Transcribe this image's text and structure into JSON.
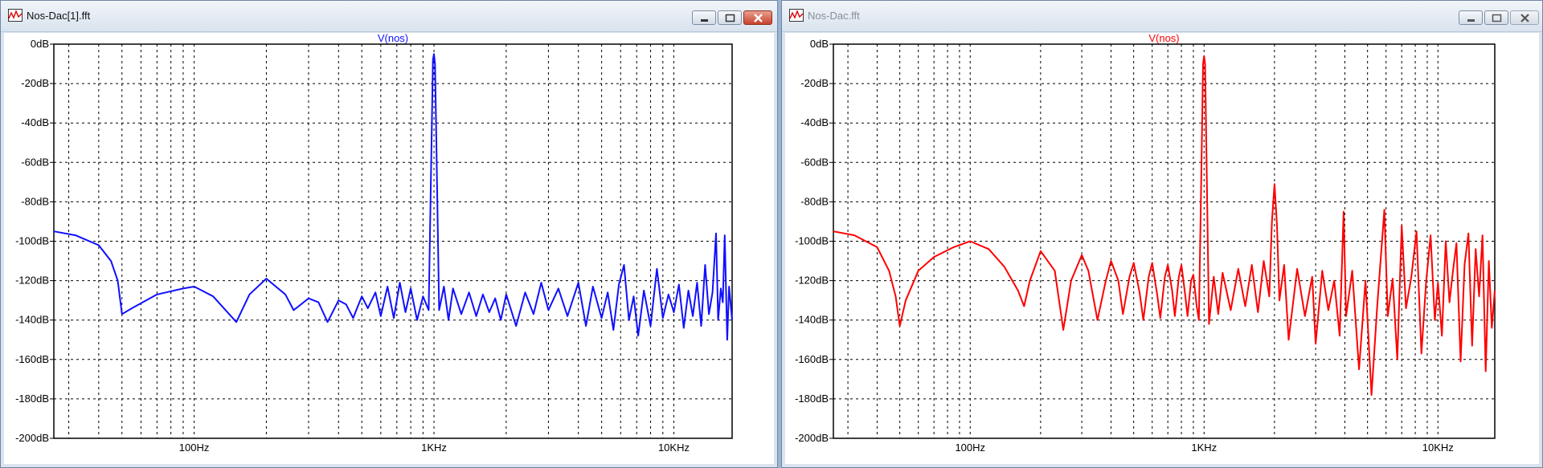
{
  "windows": [
    {
      "id": "win1",
      "title": "Nos-Dac[1].fft",
      "active": true,
      "trace_label": "V(nos)",
      "trace_color": "#1010ff"
    },
    {
      "id": "win2",
      "title": "Nos-Dac.fft",
      "active": false,
      "trace_label": "V(nos)",
      "trace_color": "#ff0000"
    }
  ],
  "icons": {
    "app": "waveform-icon",
    "minimize": "minimize-icon",
    "maximize": "maximize-icon",
    "close": "close-icon"
  },
  "colors": {
    "grid": "#000000",
    "plot_background": "#ffffff",
    "close_active": "#c9412b"
  },
  "chart_data": [
    {
      "type": "line",
      "title": "V(nos)",
      "x_scale": "log",
      "xlim": [
        26,
        17500
      ],
      "ylim": [
        -200,
        0
      ],
      "grid": true,
      "y_ticks": [
        "0dB",
        "-20dB",
        "-40dB",
        "-60dB",
        "-80dB",
        "-100dB",
        "-120dB",
        "-140dB",
        "-160dB",
        "-180dB",
        "-200dB"
      ],
      "x_ticks": [
        {
          "value": 100,
          "label": "100Hz"
        },
        {
          "value": 1000,
          "label": "1KHz"
        },
        {
          "value": 10000,
          "label": "10KHz"
        }
      ],
      "series": [
        {
          "color": "#1010ff",
          "points": [
            [
              26,
              -95
            ],
            [
              32,
              -97
            ],
            [
              40,
              -102
            ],
            [
              45,
              -110
            ],
            [
              48,
              -120
            ],
            [
              50,
              -137
            ],
            [
              55,
              -134
            ],
            [
              70,
              -127
            ],
            [
              90,
              -124
            ],
            [
              100,
              -123
            ],
            [
              120,
              -128
            ],
            [
              150,
              -141
            ],
            [
              170,
              -127
            ],
            [
              200,
              -119
            ],
            [
              240,
              -127
            ],
            [
              260,
              -135
            ],
            [
              300,
              -129
            ],
            [
              330,
              -131
            ],
            [
              360,
              -141
            ],
            [
              400,
              -130
            ],
            [
              430,
              -132
            ],
            [
              460,
              -139
            ],
            [
              500,
              -128
            ],
            [
              530,
              -134
            ],
            [
              570,
              -126
            ],
            [
              600,
              -138
            ],
            [
              640,
              -123
            ],
            [
              680,
              -139
            ],
            [
              720,
              -121
            ],
            [
              760,
              -136
            ],
            [
              800,
              -124
            ],
            [
              850,
              -140
            ],
            [
              900,
              -128
            ],
            [
              950,
              -135
            ],
            [
              980,
              -40
            ],
            [
              990,
              -8
            ],
            [
              1000,
              -5
            ],
            [
              1010,
              -10
            ],
            [
              1020,
              -40
            ],
            [
              1050,
              -135
            ],
            [
              1100,
              -123
            ],
            [
              1150,
              -140
            ],
            [
              1200,
              -124
            ],
            [
              1300,
              -137
            ],
            [
              1400,
              -126
            ],
            [
              1500,
              -138
            ],
            [
              1600,
              -127
            ],
            [
              1700,
              -136
            ],
            [
              1800,
              -129
            ],
            [
              1900,
              -140
            ],
            [
              2000,
              -127
            ],
            [
              2200,
              -143
            ],
            [
              2400,
              -126
            ],
            [
              2600,
              -137
            ],
            [
              2800,
              -121
            ],
            [
              3000,
              -135
            ],
            [
              3300,
              -124
            ],
            [
              3600,
              -138
            ],
            [
              4000,
              -121
            ],
            [
              4300,
              -143
            ],
            [
              4600,
              -123
            ],
            [
              5000,
              -139
            ],
            [
              5300,
              -126
            ],
            [
              5600,
              -145
            ],
            [
              5900,
              -122
            ],
            [
              6200,
              -112
            ],
            [
              6500,
              -140
            ],
            [
              6800,
              -128
            ],
            [
              7100,
              -148
            ],
            [
              7500,
              -125
            ],
            [
              8000,
              -143
            ],
            [
              8500,
              -114
            ],
            [
              9000,
              -139
            ],
            [
              9500,
              -127
            ],
            [
              10000,
              -136
            ],
            [
              10500,
              -122
            ],
            [
              11000,
              -144
            ],
            [
              11500,
              -125
            ],
            [
              12000,
              -138
            ],
            [
              12500,
              -121
            ],
            [
              13000,
              -143
            ],
            [
              13500,
              -112
            ],
            [
              14000,
              -137
            ],
            [
              14500,
              -126
            ],
            [
              15000,
              -96
            ],
            [
              15300,
              -140
            ],
            [
              15700,
              -124
            ],
            [
              16000,
              -131
            ],
            [
              16300,
              -97
            ],
            [
              16700,
              -150
            ],
            [
              17000,
              -123
            ],
            [
              17500,
              -140
            ]
          ]
        }
      ]
    },
    {
      "type": "line",
      "title": "V(nos)",
      "x_scale": "log",
      "xlim": [
        26,
        17500
      ],
      "ylim": [
        -200,
        0
      ],
      "grid": true,
      "y_ticks": [
        "0dB",
        "-20dB",
        "-40dB",
        "-60dB",
        "-80dB",
        "-100dB",
        "-120dB",
        "-140dB",
        "-160dB",
        "-180dB",
        "-200dB"
      ],
      "x_ticks": [
        {
          "value": 100,
          "label": "100Hz"
        },
        {
          "value": 1000,
          "label": "1KHz"
        },
        {
          "value": 10000,
          "label": "10KHz"
        }
      ],
      "series": [
        {
          "color": "#ff0000",
          "points": [
            [
              26,
              -95
            ],
            [
              32,
              -97
            ],
            [
              40,
              -103
            ],
            [
              45,
              -115
            ],
            [
              48,
              -128
            ],
            [
              50,
              -143
            ],
            [
              53,
              -130
            ],
            [
              60,
              -115
            ],
            [
              70,
              -108
            ],
            [
              85,
              -103
            ],
            [
              100,
              -100
            ],
            [
              120,
              -104
            ],
            [
              140,
              -113
            ],
            [
              160,
              -125
            ],
            [
              170,
              -133
            ],
            [
              180,
              -120
            ],
            [
              200,
              -105
            ],
            [
              230,
              -115
            ],
            [
              250,
              -145
            ],
            [
              270,
              -120
            ],
            [
              300,
              -107
            ],
            [
              320,
              -115
            ],
            [
              350,
              -140
            ],
            [
              380,
              -120
            ],
            [
              400,
              -110
            ],
            [
              430,
              -120
            ],
            [
              450,
              -137
            ],
            [
              480,
              -118
            ],
            [
              500,
              -111
            ],
            [
              530,
              -126
            ],
            [
              550,
              -140
            ],
            [
              580,
              -118
            ],
            [
              600,
              -111
            ],
            [
              630,
              -127
            ],
            [
              650,
              -139
            ],
            [
              680,
              -118
            ],
            [
              700,
              -112
            ],
            [
              730,
              -125
            ],
            [
              750,
              -138
            ],
            [
              780,
              -118
            ],
            [
              800,
              -112
            ],
            [
              830,
              -127
            ],
            [
              850,
              -138
            ],
            [
              880,
              -120
            ],
            [
              900,
              -117
            ],
            [
              930,
              -133
            ],
            [
              950,
              -140
            ],
            [
              975,
              -60
            ],
            [
              990,
              -10
            ],
            [
              1000,
              -6
            ],
            [
              1010,
              -10
            ],
            [
              1025,
              -60
            ],
            [
              1050,
              -142
            ],
            [
              1100,
              -118
            ],
            [
              1150,
              -137
            ],
            [
              1200,
              -116
            ],
            [
              1300,
              -135
            ],
            [
              1400,
              -114
            ],
            [
              1500,
              -133
            ],
            [
              1600,
              -112
            ],
            [
              1700,
              -136
            ],
            [
              1800,
              -110
            ],
            [
              1900,
              -128
            ],
            [
              1950,
              -90
            ],
            [
              2000,
              -71
            ],
            [
              2050,
              -92
            ],
            [
              2100,
              -130
            ],
            [
              2200,
              -112
            ],
            [
              2300,
              -150
            ],
            [
              2500,
              -114
            ],
            [
              2700,
              -138
            ],
            [
              2900,
              -118
            ],
            [
              3000,
              -152
            ],
            [
              3200,
              -115
            ],
            [
              3400,
              -135
            ],
            [
              3600,
              -120
            ],
            [
              3800,
              -148
            ],
            [
              3950,
              -85
            ],
            [
              4050,
              -138
            ],
            [
              4300,
              -115
            ],
            [
              4600,
              -165
            ],
            [
              4900,
              -120
            ],
            [
              5200,
              -178
            ],
            [
              5500,
              -133
            ],
            [
              5900,
              -84
            ],
            [
              6100,
              -138
            ],
            [
              6400,
              -119
            ],
            [
              6700,
              -160
            ],
            [
              7000,
              -92
            ],
            [
              7300,
              -134
            ],
            [
              7700,
              -118
            ],
            [
              8100,
              -95
            ],
            [
              8500,
              -157
            ],
            [
              8900,
              -121
            ],
            [
              9300,
              -97
            ],
            [
              9700,
              -140
            ],
            [
              10000,
              -121
            ],
            [
              10400,
              -148
            ],
            [
              10800,
              -100
            ],
            [
              11200,
              -131
            ],
            [
              11600,
              -115
            ],
            [
              12000,
              -101
            ],
            [
              12500,
              -161
            ],
            [
              13000,
              -112
            ],
            [
              13500,
              -96
            ],
            [
              14000,
              -153
            ],
            [
              14500,
              -104
            ],
            [
              15000,
              -128
            ],
            [
              15500,
              -97
            ],
            [
              16000,
              -166
            ],
            [
              16500,
              -110
            ],
            [
              17000,
              -144
            ],
            [
              17500,
              -125
            ]
          ]
        }
      ]
    }
  ]
}
